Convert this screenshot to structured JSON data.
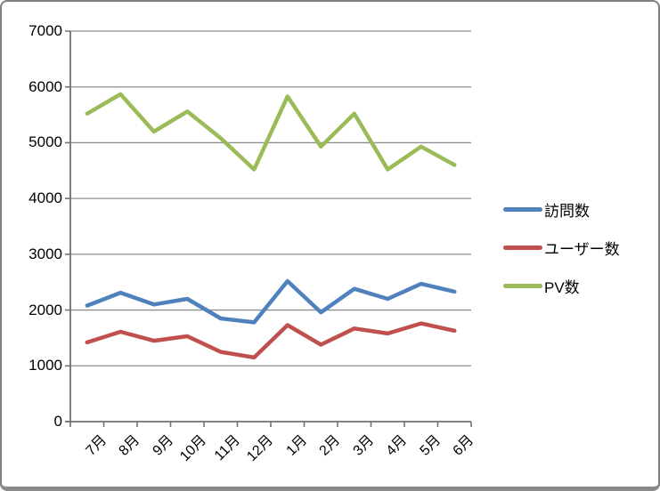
{
  "chart_data": {
    "type": "line",
    "categories": [
      "7月",
      "8月",
      "9月",
      "10月",
      "11月",
      "12月",
      "1月",
      "2月",
      "3月",
      "4月",
      "5月",
      "6月"
    ],
    "series": [
      {
        "name": "訪問数",
        "color": "#4F81BD",
        "values": [
          2080,
          2310,
          2100,
          2200,
          1850,
          1780,
          2520,
          1960,
          2380,
          2200,
          2470,
          2330
        ]
      },
      {
        "name": "ユーザー数",
        "color": "#C0504D",
        "values": [
          1420,
          1610,
          1450,
          1530,
          1250,
          1150,
          1730,
          1380,
          1670,
          1580,
          1760,
          1630
        ]
      },
      {
        "name": "PV数",
        "color": "#9BBB59",
        "values": [
          5520,
          5870,
          5200,
          5560,
          5080,
          4520,
          5830,
          4930,
          5520,
          4520,
          4930,
          4600
        ]
      }
    ],
    "title": "",
    "xlabel": "",
    "ylabel": "",
    "ylim": [
      0,
      7000
    ],
    "y_tick_step": 1000,
    "y_tick_labels": [
      "0",
      "1000",
      "2000",
      "3000",
      "4000",
      "5000",
      "6000",
      "7000"
    ],
    "grid": true,
    "legend_position": "right"
  },
  "colors": {
    "background": "#FFFFFF",
    "frame_border": "#808080",
    "gridline": "#8E8E8E",
    "axis": "#717171",
    "text": "#000000"
  }
}
